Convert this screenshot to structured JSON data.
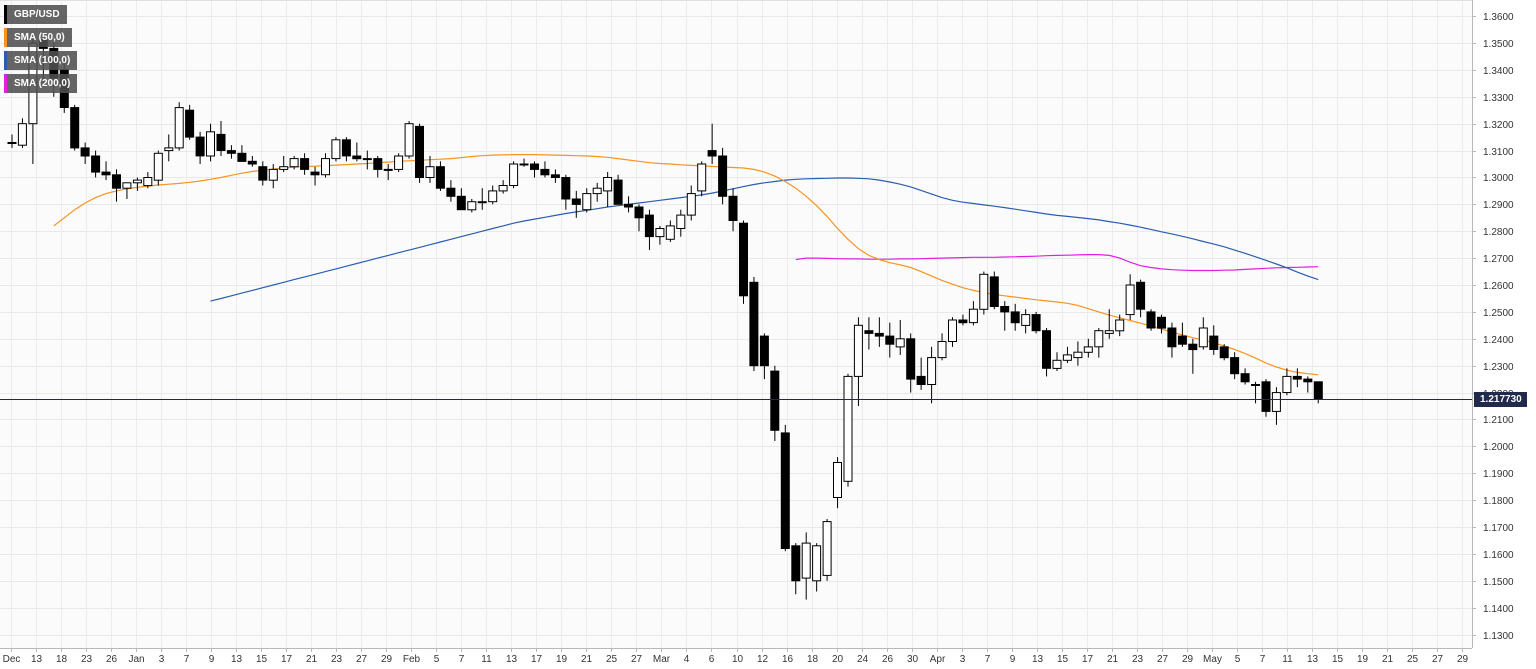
{
  "legend": [
    {
      "label": "GBP/USD",
      "color": "#000000"
    },
    {
      "label": "SMA (50,0)",
      "color": "#f7931e"
    },
    {
      "label": "SMA (100,0)",
      "color": "#2a5db0"
    },
    {
      "label": "SMA (200,0)",
      "color": "#e020e0"
    }
  ],
  "current_price": {
    "label": "1.217730",
    "value": 1.21773
  },
  "chart_data": {
    "type": "candlestick",
    "title": "",
    "pair": "GBP/USD",
    "ylim": [
      1.125,
      1.366
    ],
    "y_ticks": [
      "1.3600",
      "1.3500",
      "1.3400",
      "1.3300",
      "1.3200",
      "1.3100",
      "1.3000",
      "1.2900",
      "1.2800",
      "1.2700",
      "1.2600",
      "1.2500",
      "1.2400",
      "1.2300",
      "1.2200",
      "1.2100",
      "1.2000",
      "1.1900",
      "1.1800",
      "1.1700",
      "1.1600",
      "1.1500",
      "1.1400",
      "1.1300"
    ],
    "x_ticks": [
      "Dec",
      "13",
      "18",
      "23",
      "26",
      "Jan",
      "3",
      "7",
      "9",
      "13",
      "15",
      "17",
      "21",
      "23",
      "27",
      "29",
      "Feb",
      "5",
      "7",
      "11",
      "13",
      "17",
      "19",
      "21",
      "25",
      "27",
      "Mar",
      "4",
      "6",
      "10",
      "12",
      "16",
      "18",
      "20",
      "24",
      "26",
      "30",
      "Apr",
      "3",
      "7",
      "9",
      "13",
      "15",
      "17",
      "21",
      "23",
      "27",
      "29",
      "May",
      "5",
      "7",
      "11",
      "13",
      "15",
      "19",
      "21",
      "25",
      "27",
      "29"
    ],
    "candles": [
      {
        "o": 1.313,
        "h": 1.316,
        "l": 1.311,
        "c": 1.313
      },
      {
        "o": 1.312,
        "h": 1.322,
        "l": 1.311,
        "c": 1.32
      },
      {
        "o": 1.32,
        "h": 1.352,
        "l": 1.305,
        "c": 1.35
      },
      {
        "o": 1.351,
        "h": 1.352,
        "l": 1.335,
        "c": 1.348
      },
      {
        "o": 1.348,
        "h": 1.35,
        "l": 1.33,
        "c": 1.337
      },
      {
        "o": 1.34,
        "h": 1.344,
        "l": 1.324,
        "c": 1.326
      },
      {
        "o": 1.326,
        "h": 1.327,
        "l": 1.31,
        "c": 1.311
      },
      {
        "o": 1.311,
        "h": 1.313,
        "l": 1.305,
        "c": 1.308
      },
      {
        "o": 1.308,
        "h": 1.31,
        "l": 1.3,
        "c": 1.302
      },
      {
        "o": 1.302,
        "h": 1.306,
        "l": 1.299,
        "c": 1.301
      },
      {
        "o": 1.301,
        "h": 1.303,
        "l": 1.291,
        "c": 1.296
      },
      {
        "o": 1.296,
        "h": 1.298,
        "l": 1.292,
        "c": 1.298
      },
      {
        "o": 1.298,
        "h": 1.3,
        "l": 1.295,
        "c": 1.299
      },
      {
        "o": 1.297,
        "h": 1.302,
        "l": 1.296,
        "c": 1.3
      },
      {
        "o": 1.299,
        "h": 1.31,
        "l": 1.297,
        "c": 1.309
      },
      {
        "o": 1.31,
        "h": 1.316,
        "l": 1.306,
        "c": 1.311
      },
      {
        "o": 1.311,
        "h": 1.328,
        "l": 1.31,
        "c": 1.326
      },
      {
        "o": 1.325,
        "h": 1.327,
        "l": 1.314,
        "c": 1.315
      },
      {
        "o": 1.315,
        "h": 1.317,
        "l": 1.305,
        "c": 1.308
      },
      {
        "o": 1.308,
        "h": 1.32,
        "l": 1.306,
        "c": 1.317
      },
      {
        "o": 1.316,
        "h": 1.321,
        "l": 1.308,
        "c": 1.31
      },
      {
        "o": 1.31,
        "h": 1.312,
        "l": 1.307,
        "c": 1.309
      },
      {
        "o": 1.309,
        "h": 1.312,
        "l": 1.306,
        "c": 1.306
      },
      {
        "o": 1.306,
        "h": 1.308,
        "l": 1.304,
        "c": 1.305
      },
      {
        "o": 1.304,
        "h": 1.306,
        "l": 1.297,
        "c": 1.299
      },
      {
        "o": 1.299,
        "h": 1.305,
        "l": 1.296,
        "c": 1.303
      },
      {
        "o": 1.303,
        "h": 1.308,
        "l": 1.302,
        "c": 1.304
      },
      {
        "o": 1.304,
        "h": 1.308,
        "l": 1.303,
        "c": 1.307
      },
      {
        "o": 1.307,
        "h": 1.309,
        "l": 1.301,
        "c": 1.303
      },
      {
        "o": 1.302,
        "h": 1.304,
        "l": 1.297,
        "c": 1.301
      },
      {
        "o": 1.301,
        "h": 1.309,
        "l": 1.3,
        "c": 1.307
      },
      {
        "o": 1.307,
        "h": 1.315,
        "l": 1.306,
        "c": 1.314
      },
      {
        "o": 1.314,
        "h": 1.315,
        "l": 1.306,
        "c": 1.308
      },
      {
        "o": 1.308,
        "h": 1.313,
        "l": 1.306,
        "c": 1.307
      },
      {
        "o": 1.307,
        "h": 1.31,
        "l": 1.303,
        "c": 1.307
      },
      {
        "o": 1.307,
        "h": 1.308,
        "l": 1.3,
        "c": 1.303
      },
      {
        "o": 1.303,
        "h": 1.305,
        "l": 1.299,
        "c": 1.303
      },
      {
        "o": 1.303,
        "h": 1.309,
        "l": 1.302,
        "c": 1.308
      },
      {
        "o": 1.308,
        "h": 1.321,
        "l": 1.307,
        "c": 1.32
      },
      {
        "o": 1.319,
        "h": 1.32,
        "l": 1.298,
        "c": 1.3
      },
      {
        "o": 1.3,
        "h": 1.308,
        "l": 1.298,
        "c": 1.304
      },
      {
        "o": 1.304,
        "h": 1.306,
        "l": 1.295,
        "c": 1.296
      },
      {
        "o": 1.296,
        "h": 1.299,
        "l": 1.291,
        "c": 1.293
      },
      {
        "o": 1.293,
        "h": 1.296,
        "l": 1.288,
        "c": 1.288
      },
      {
        "o": 1.288,
        "h": 1.292,
        "l": 1.287,
        "c": 1.291
      },
      {
        "o": 1.291,
        "h": 1.296,
        "l": 1.288,
        "c": 1.291
      },
      {
        "o": 1.291,
        "h": 1.297,
        "l": 1.29,
        "c": 1.295
      },
      {
        "o": 1.295,
        "h": 1.299,
        "l": 1.294,
        "c": 1.297
      },
      {
        "o": 1.297,
        "h": 1.306,
        "l": 1.296,
        "c": 1.305
      },
      {
        "o": 1.305,
        "h": 1.307,
        "l": 1.304,
        "c": 1.305
      },
      {
        "o": 1.305,
        "h": 1.306,
        "l": 1.3,
        "c": 1.303
      },
      {
        "o": 1.303,
        "h": 1.306,
        "l": 1.3,
        "c": 1.301
      },
      {
        "o": 1.301,
        "h": 1.303,
        "l": 1.298,
        "c": 1.3
      },
      {
        "o": 1.3,
        "h": 1.301,
        "l": 1.288,
        "c": 1.292
      },
      {
        "o": 1.292,
        "h": 1.295,
        "l": 1.285,
        "c": 1.29
      },
      {
        "o": 1.288,
        "h": 1.296,
        "l": 1.287,
        "c": 1.294
      },
      {
        "o": 1.294,
        "h": 1.298,
        "l": 1.291,
        "c": 1.296
      },
      {
        "o": 1.295,
        "h": 1.302,
        "l": 1.289,
        "c": 1.3
      },
      {
        "o": 1.299,
        "h": 1.301,
        "l": 1.29,
        "c": 1.29
      },
      {
        "o": 1.29,
        "h": 1.293,
        "l": 1.287,
        "c": 1.289
      },
      {
        "o": 1.289,
        "h": 1.29,
        "l": 1.28,
        "c": 1.285
      },
      {
        "o": 1.286,
        "h": 1.288,
        "l": 1.273,
        "c": 1.278
      },
      {
        "o": 1.278,
        "h": 1.282,
        "l": 1.275,
        "c": 1.281
      },
      {
        "o": 1.277,
        "h": 1.284,
        "l": 1.276,
        "c": 1.282
      },
      {
        "o": 1.281,
        "h": 1.288,
        "l": 1.278,
        "c": 1.286
      },
      {
        "o": 1.286,
        "h": 1.297,
        "l": 1.284,
        "c": 1.294
      },
      {
        "o": 1.295,
        "h": 1.306,
        "l": 1.293,
        "c": 1.305
      },
      {
        "o": 1.31,
        "h": 1.32,
        "l": 1.305,
        "c": 1.308
      },
      {
        "o": 1.308,
        "h": 1.311,
        "l": 1.29,
        "c": 1.293
      },
      {
        "o": 1.293,
        "h": 1.296,
        "l": 1.28,
        "c": 1.284
      },
      {
        "o": 1.283,
        "h": 1.284,
        "l": 1.253,
        "c": 1.256
      },
      {
        "o": 1.261,
        "h": 1.263,
        "l": 1.228,
        "c": 1.23
      },
      {
        "o": 1.241,
        "h": 1.242,
        "l": 1.225,
        "c": 1.23
      },
      {
        "o": 1.228,
        "h": 1.23,
        "l": 1.202,
        "c": 1.206
      },
      {
        "o": 1.205,
        "h": 1.208,
        "l": 1.161,
        "c": 1.162
      },
      {
        "o": 1.163,
        "h": 1.164,
        "l": 1.145,
        "c": 1.15
      },
      {
        "o": 1.151,
        "h": 1.168,
        "l": 1.143,
        "c": 1.164
      },
      {
        "o": 1.15,
        "h": 1.164,
        "l": 1.146,
        "c": 1.163
      },
      {
        "o": 1.152,
        "h": 1.173,
        "l": 1.15,
        "c": 1.172
      },
      {
        "o": 1.181,
        "h": 1.196,
        "l": 1.177,
        "c": 1.194
      },
      {
        "o": 1.187,
        "h": 1.227,
        "l": 1.185,
        "c": 1.226
      },
      {
        "o": 1.226,
        "h": 1.248,
        "l": 1.215,
        "c": 1.245
      },
      {
        "o": 1.243,
        "h": 1.248,
        "l": 1.236,
        "c": 1.242
      },
      {
        "o": 1.242,
        "h": 1.248,
        "l": 1.237,
        "c": 1.241
      },
      {
        "o": 1.241,
        "h": 1.246,
        "l": 1.233,
        "c": 1.238
      },
      {
        "o": 1.237,
        "h": 1.247,
        "l": 1.234,
        "c": 1.24
      },
      {
        "o": 1.24,
        "h": 1.242,
        "l": 1.22,
        "c": 1.225
      },
      {
        "o": 1.226,
        "h": 1.233,
        "l": 1.221,
        "c": 1.223
      },
      {
        "o": 1.223,
        "h": 1.237,
        "l": 1.216,
        "c": 1.233
      },
      {
        "o": 1.233,
        "h": 1.242,
        "l": 1.232,
        "c": 1.239
      },
      {
        "o": 1.239,
        "h": 1.248,
        "l": 1.237,
        "c": 1.247
      },
      {
        "o": 1.247,
        "h": 1.249,
        "l": 1.245,
        "c": 1.246
      },
      {
        "o": 1.246,
        "h": 1.254,
        "l": 1.245,
        "c": 1.251
      },
      {
        "o": 1.251,
        "h": 1.265,
        "l": 1.249,
        "c": 1.264
      },
      {
        "o": 1.263,
        "h": 1.265,
        "l": 1.251,
        "c": 1.252
      },
      {
        "o": 1.252,
        "h": 1.254,
        "l": 1.243,
        "c": 1.25
      },
      {
        "o": 1.25,
        "h": 1.253,
        "l": 1.243,
        "c": 1.246
      },
      {
        "o": 1.245,
        "h": 1.251,
        "l": 1.242,
        "c": 1.249
      },
      {
        "o": 1.249,
        "h": 1.25,
        "l": 1.242,
        "c": 1.243
      },
      {
        "o": 1.243,
        "h": 1.244,
        "l": 1.226,
        "c": 1.229
      },
      {
        "o": 1.229,
        "h": 1.235,
        "l": 1.228,
        "c": 1.232
      },
      {
        "o": 1.232,
        "h": 1.237,
        "l": 1.231,
        "c": 1.234
      },
      {
        "o": 1.233,
        "h": 1.239,
        "l": 1.23,
        "c": 1.235
      },
      {
        "o": 1.235,
        "h": 1.24,
        "l": 1.233,
        "c": 1.237
      },
      {
        "o": 1.237,
        "h": 1.244,
        "l": 1.233,
        "c": 1.243
      },
      {
        "o": 1.242,
        "h": 1.251,
        "l": 1.24,
        "c": 1.243
      },
      {
        "o": 1.243,
        "h": 1.249,
        "l": 1.241,
        "c": 1.247
      },
      {
        "o": 1.249,
        "h": 1.264,
        "l": 1.247,
        "c": 1.26
      },
      {
        "o": 1.261,
        "h": 1.262,
        "l": 1.248,
        "c": 1.251
      },
      {
        "o": 1.25,
        "h": 1.251,
        "l": 1.243,
        "c": 1.244
      },
      {
        "o": 1.248,
        "h": 1.249,
        "l": 1.242,
        "c": 1.244
      },
      {
        "o": 1.244,
        "h": 1.246,
        "l": 1.233,
        "c": 1.237
      },
      {
        "o": 1.241,
        "h": 1.246,
        "l": 1.237,
        "c": 1.238
      },
      {
        "o": 1.238,
        "h": 1.24,
        "l": 1.227,
        "c": 1.236
      },
      {
        "o": 1.237,
        "h": 1.248,
        "l": 1.236,
        "c": 1.244
      },
      {
        "o": 1.241,
        "h": 1.245,
        "l": 1.234,
        "c": 1.236
      },
      {
        "o": 1.237,
        "h": 1.238,
        "l": 1.232,
        "c": 1.233
      },
      {
        "o": 1.233,
        "h": 1.235,
        "l": 1.225,
        "c": 1.227
      },
      {
        "o": 1.227,
        "h": 1.229,
        "l": 1.223,
        "c": 1.224
      },
      {
        "o": 1.223,
        "h": 1.224,
        "l": 1.216,
        "c": 1.223
      },
      {
        "o": 1.224,
        "h": 1.225,
        "l": 1.211,
        "c": 1.213
      },
      {
        "o": 1.213,
        "h": 1.222,
        "l": 1.208,
        "c": 1.22
      },
      {
        "o": 1.22,
        "h": 1.229,
        "l": 1.219,
        "c": 1.226
      },
      {
        "o": 1.226,
        "h": 1.229,
        "l": 1.222,
        "c": 1.225
      },
      {
        "o": 1.225,
        "h": 1.226,
        "l": 1.22,
        "c": 1.224
      },
      {
        "o": 1.224,
        "h": 1.224,
        "l": 1.216,
        "c": 1.2177
      }
    ],
    "sma_50": [
      1.282,
      1.285,
      1.288,
      1.2905,
      1.2925,
      1.294,
      1.295,
      1.2958,
      1.2963,
      1.2968,
      1.2972,
      1.2975,
      1.2978,
      1.2982,
      1.2987,
      1.2993,
      1.3,
      1.3008,
      1.3016,
      1.3022,
      1.3027,
      1.3031,
      1.3035,
      1.3038,
      1.304,
      1.3042,
      1.3044,
      1.3046,
      1.3048,
      1.305,
      1.3052,
      1.3055,
      1.3057,
      1.306,
      1.3062,
      1.3064,
      1.3066,
      1.3068,
      1.307,
      1.3074,
      1.3078,
      1.3081,
      1.3083,
      1.3084,
      1.3085,
      1.3085,
      1.3085,
      1.3084,
      1.3083,
      1.3082,
      1.3081,
      1.308,
      1.3078,
      1.3075,
      1.307,
      1.3065,
      1.306,
      1.3055,
      1.3052,
      1.305,
      1.3047,
      1.3045,
      1.3043,
      1.3041,
      1.3039,
      1.3037,
      1.3035,
      1.303,
      1.302,
      1.3005,
      1.2985,
      1.296,
      1.293,
      1.2895,
      1.2855,
      1.281,
      1.277,
      1.2735,
      1.271,
      1.2695,
      1.2683,
      1.2675,
      1.2665,
      1.265,
      1.2633,
      1.2617,
      1.2603,
      1.259,
      1.258,
      1.2572,
      1.2565,
      1.256,
      1.2555,
      1.255,
      1.2545,
      1.2541,
      1.2537,
      1.2532,
      1.2524,
      1.2512,
      1.25,
      1.2488,
      1.2478,
      1.2468,
      1.2458,
      1.2448,
      1.2436,
      1.2425,
      1.2414,
      1.2404,
      1.2395,
      1.2385,
      1.2373,
      1.236,
      1.2345,
      1.2328,
      1.231,
      1.2295,
      1.2283,
      1.2275,
      1.227,
      1.2266
    ],
    "sma_100": [
      1.254,
      1.255,
      1.256,
      1.257,
      1.258,
      1.259,
      1.26,
      1.261,
      1.262,
      1.263,
      1.264,
      1.265,
      1.266,
      1.267,
      1.268,
      1.269,
      1.27,
      1.271,
      1.272,
      1.273,
      1.274,
      1.275,
      1.276,
      1.277,
      1.278,
      1.279,
      1.28,
      1.281,
      1.282,
      1.283,
      1.2838,
      1.2845,
      1.2852,
      1.2859,
      1.2866,
      1.2872,
      1.2878,
      1.2884,
      1.289,
      1.2895,
      1.29,
      1.2905,
      1.291,
      1.2915,
      1.292,
      1.2925,
      1.293,
      1.2935,
      1.2942,
      1.295,
      1.2958,
      1.2966,
      1.2974,
      1.298,
      1.2985,
      1.299,
      1.2993,
      1.2995,
      1.2996,
      1.2997,
      1.2998,
      1.2998,
      1.2997,
      1.2995,
      1.299,
      1.2983,
      1.2975,
      1.2965,
      1.2952,
      1.2938,
      1.2925,
      1.2915,
      1.2908,
      1.2903,
      1.2898,
      1.2893,
      1.2888,
      1.2882,
      1.2876,
      1.287,
      1.2864,
      1.2859,
      1.2855,
      1.2851,
      1.2847,
      1.2842,
      1.2836,
      1.283,
      1.2823,
      1.2815,
      1.2807,
      1.2798,
      1.279,
      1.2781,
      1.2772,
      1.2762,
      1.2752,
      1.2742,
      1.273,
      1.2718,
      1.2705,
      1.2692,
      1.2678,
      1.2664,
      1.2648,
      1.2633,
      1.262
    ],
    "sma_200": [
      1.2695,
      1.27,
      1.27,
      1.2699,
      1.2698,
      1.2697,
      1.2697,
      1.2696,
      1.2696,
      1.2696,
      1.2697,
      1.2697,
      1.2698,
      1.2699,
      1.27,
      1.2701,
      1.2702,
      1.2703,
      1.2703,
      1.2703,
      1.2704,
      1.2705,
      1.2706,
      1.2707,
      1.2709,
      1.271,
      1.2711,
      1.2712,
      1.2713,
      1.2713,
      1.271,
      1.27,
      1.2685,
      1.2672,
      1.2665,
      1.266,
      1.2657,
      1.2655,
      1.2654,
      1.2654,
      1.2654,
      1.2655,
      1.2656,
      1.2658,
      1.266,
      1.2662,
      1.2664,
      1.2665,
      1.2666,
      1.2667,
      1.2668
    ],
    "colors": {
      "bull_fill": "#ffffff",
      "bear_fill": "#000000",
      "wick": "#000000",
      "sma50": "#f7931e",
      "sma100": "#2a5db0",
      "sma200": "#e020e0",
      "price_line": "#1f2a4d"
    },
    "grid": true,
    "legend_position": "top-left"
  }
}
